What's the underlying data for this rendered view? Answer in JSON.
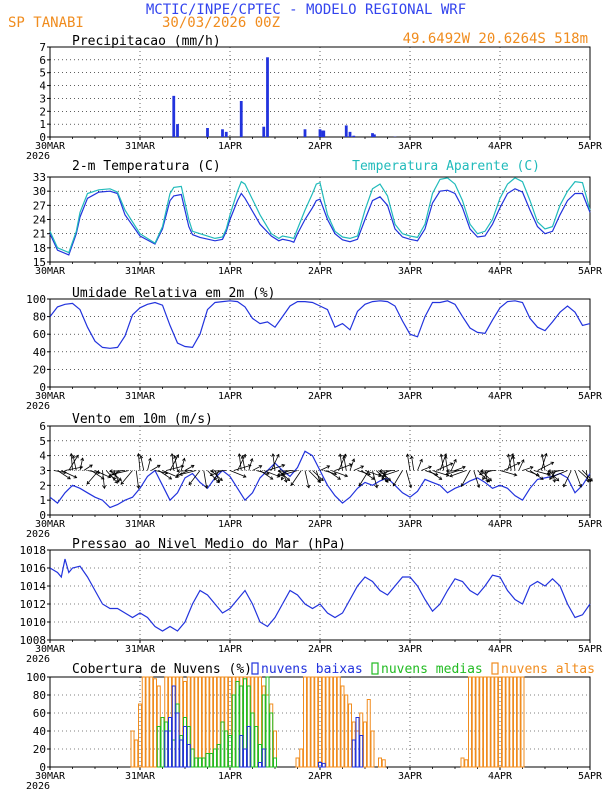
{
  "header": {
    "title": "MCTIC/INPE/CPTEC - MODELO REGIONAL WRF",
    "station": "SP TANABI",
    "run": "30/03/2026 00Z",
    "coords": "49.6492W 20.6264S 518m"
  },
  "colors": {
    "blue": "#2233dd",
    "orange": "#f08c1e",
    "cyan": "#22bbbb",
    "green": "#22bb22",
    "title_blue": "#3344ee",
    "black": "#000000"
  },
  "x_axis": {
    "tick_labels": [
      "30MAR",
      "31MAR",
      "1APR",
      "2APR",
      "3APR",
      "4APR",
      "5APR"
    ],
    "year": "2026",
    "range_hours": [
      0,
      144
    ]
  },
  "chart_data": [
    {
      "type": "bar",
      "title": "Precipitacao (mm/h)",
      "ylim": [
        0,
        7
      ],
      "yticks": [
        "0",
        "1",
        "2",
        "3",
        "4",
        "5",
        "6",
        "7"
      ],
      "x_hours": [
        33,
        34,
        42,
        46,
        47,
        51,
        57,
        58,
        68,
        72,
        72.7,
        73,
        79,
        80,
        81,
        86,
        86.5,
        92
      ],
      "values": [
        3.2,
        1.0,
        0.7,
        0.6,
        0.4,
        2.8,
        0.8,
        6.2,
        0.6,
        0.6,
        0.5,
        0.5,
        0.9,
        0.4,
        0.1,
        0.3,
        0.2,
        0.02
      ]
    },
    {
      "type": "line",
      "title": "2-m Temperatura (C)",
      "legend": "Temperatura Aparente (C)",
      "ylim": [
        15,
        33
      ],
      "yticks": [
        "15",
        "18",
        "21",
        "24",
        "27",
        "30",
        "33"
      ],
      "series": [
        {
          "name": "Temperatura",
          "x": [
            0,
            2,
            5,
            7,
            8,
            10,
            13,
            16,
            18,
            20,
            24,
            28,
            30,
            32,
            33,
            35,
            37,
            38,
            40,
            44,
            46,
            47,
            48,
            50,
            51,
            52,
            56,
            59,
            61,
            62,
            64,
            65,
            66,
            68,
            70,
            71,
            72,
            74,
            76,
            78,
            80,
            82,
            84,
            86,
            88,
            90,
            92,
            94,
            96,
            98,
            100,
            102,
            104,
            106,
            108,
            110,
            112,
            114,
            116,
            118,
            120,
            122,
            124,
            126,
            128,
            130,
            132,
            134,
            136,
            138,
            140,
            142,
            144
          ],
          "values": [
            21,
            17.5,
            16.5,
            21,
            24.5,
            28.5,
            29.8,
            30,
            29.5,
            25,
            20.5,
            18.8,
            22,
            28,
            29,
            29.3,
            22.5,
            20.8,
            20.2,
            19.5,
            19.8,
            21.5,
            24,
            28,
            29.5,
            28.5,
            23,
            20.5,
            19.5,
            19.8,
            19.5,
            19.2,
            21,
            24,
            26.5,
            28,
            28.3,
            24,
            21,
            19.7,
            19.3,
            19.8,
            24,
            28,
            28.8,
            27,
            22,
            20.3,
            19.8,
            19.5,
            22,
            27.5,
            30,
            30.2,
            29.5,
            26.5,
            22,
            20.3,
            20.5,
            23,
            26.5,
            29.5,
            30.5,
            29.8,
            26,
            22.5,
            21,
            21.5,
            25,
            28,
            29.5,
            29.5,
            25.5
          ]
        },
        {
          "name": "Temperatura Aparente",
          "x": [
            0,
            2,
            5,
            7,
            8,
            10,
            13,
            16,
            18,
            20,
            24,
            28,
            30,
            32,
            33,
            35,
            37,
            38,
            40,
            44,
            46,
            47,
            48,
            50,
            51,
            52,
            56,
            59,
            61,
            62,
            64,
            65,
            66,
            68,
            70,
            71,
            72,
            74,
            76,
            78,
            80,
            82,
            84,
            86,
            88,
            90,
            92,
            94,
            96,
            98,
            100,
            102,
            104,
            106,
            108,
            110,
            112,
            114,
            116,
            118,
            120,
            122,
            124,
            126,
            128,
            130,
            132,
            134,
            136,
            138,
            140,
            142,
            144
          ],
          "values": [
            21.5,
            18,
            17,
            21.5,
            25.5,
            29.5,
            30.3,
            30.5,
            29.8,
            26,
            21,
            19,
            22.5,
            29.5,
            30.8,
            31,
            24,
            21.5,
            21,
            20,
            20.3,
            22,
            25,
            30,
            32,
            31.5,
            25,
            21,
            20,
            20.5,
            20.2,
            20,
            22,
            26,
            29.5,
            31.5,
            31.8,
            25,
            21.5,
            20.3,
            20,
            20.5,
            26,
            30.5,
            31.5,
            29,
            23,
            21,
            20.5,
            20.2,
            23,
            29.5,
            32.5,
            32.8,
            31.5,
            28,
            23,
            21,
            21.5,
            24,
            28.5,
            31.5,
            32.8,
            32,
            28,
            23.5,
            22,
            22.5,
            27,
            30,
            32,
            31.8,
            26
          ]
        }
      ]
    },
    {
      "type": "line",
      "title": "Umidade Relativa em 2m (%)",
      "ylim": [
        0,
        100
      ],
      "yticks": [
        "0",
        "20",
        "40",
        "60",
        "80",
        "100"
      ],
      "x": [
        0,
        2,
        4,
        6,
        8,
        10,
        12,
        14,
        16,
        18,
        20,
        22,
        24,
        26,
        28,
        30,
        32,
        34,
        36,
        38,
        40,
        42,
        44,
        46,
        48,
        50,
        52,
        54,
        56,
        58,
        60,
        62,
        64,
        66,
        68,
        70,
        72,
        74,
        76,
        78,
        80,
        82,
        84,
        86,
        88,
        90,
        92,
        94,
        96,
        98,
        100,
        102,
        104,
        106,
        108,
        110,
        112,
        114,
        116,
        118,
        120,
        122,
        124,
        126,
        128,
        130,
        132,
        134,
        136,
        138,
        140,
        142,
        144
      ],
      "values": [
        80,
        91,
        94,
        95,
        88,
        68,
        52,
        45,
        44,
        45,
        58,
        82,
        90,
        94,
        96,
        93,
        70,
        50,
        46,
        45,
        60,
        88,
        96,
        97,
        98,
        97,
        91,
        78,
        72,
        74,
        68,
        80,
        92,
        97,
        97,
        96,
        92,
        88,
        68,
        72,
        65,
        86,
        94,
        97,
        98,
        97,
        92,
        75,
        60,
        57,
        80,
        96,
        96,
        98,
        94,
        80,
        67,
        62,
        61,
        76,
        90,
        97,
        98,
        96,
        78,
        68,
        64,
        74,
        85,
        92,
        85,
        70,
        72
      ]
    },
    {
      "type": "line",
      "title": "Vento em 10m (m/s)",
      "ylim": [
        0,
        6
      ],
      "yticks": [
        "0",
        "1",
        "2",
        "3",
        "4",
        "5",
        "6"
      ],
      "x": [
        0,
        2,
        4,
        6,
        8,
        10,
        12,
        14,
        16,
        18,
        20,
        22,
        24,
        26,
        28,
        30,
        32,
        34,
        36,
        38,
        40,
        42,
        44,
        46,
        48,
        50,
        52,
        54,
        56,
        58,
        60,
        62,
        64,
        66,
        68,
        70,
        72,
        74,
        76,
        78,
        80,
        82,
        84,
        86,
        88,
        90,
        92,
        94,
        96,
        98,
        100,
        102,
        104,
        106,
        108,
        110,
        112,
        114,
        116,
        118,
        120,
        122,
        124,
        126,
        128,
        130,
        132,
        134,
        136,
        138,
        140,
        142,
        144
      ],
      "values": [
        1.2,
        0.8,
        1.5,
        2.0,
        1.8,
        1.5,
        1.2,
        1.0,
        0.5,
        0.7,
        1.0,
        1.2,
        1.8,
        2.6,
        3.0,
        2.0,
        1.0,
        1.5,
        2.5,
        2.8,
        2.2,
        1.8,
        2.5,
        3.0,
        2.6,
        1.8,
        1.0,
        1.5,
        2.5,
        3.0,
        3.5,
        3.0,
        2.6,
        3.2,
        4.3,
        4.0,
        3.0,
        2.0,
        1.3,
        0.8,
        1.2,
        1.8,
        2.2,
        2.0,
        2.3,
        2.5,
        2.0,
        1.5,
        1.2,
        1.6,
        2.4,
        2.2,
        2.0,
        1.5,
        1.8,
        2.0,
        2.3,
        2.5,
        2.2,
        1.8,
        2.0,
        1.8,
        1.3,
        1.0,
        1.8,
        2.4,
        2.5,
        2.6,
        2.8,
        2.5,
        1.5,
        2.0,
        2.8
      ]
    },
    {
      "type": "line",
      "title": "Pressao ao Nivel Medio do Mar (hPa)",
      "ylim": [
        1008,
        1018
      ],
      "yticks": [
        "1008",
        "1010",
        "1012",
        "1014",
        "1016",
        "1018"
      ],
      "x": [
        0,
        2,
        3,
        4,
        5,
        6,
        8,
        10,
        12,
        14,
        16,
        18,
        20,
        22,
        24,
        26,
        28,
        30,
        32,
        34,
        36,
        38,
        40,
        42,
        44,
        46,
        48,
        50,
        52,
        54,
        56,
        58,
        60,
        62,
        64,
        66,
        68,
        70,
        72,
        74,
        76,
        78,
        80,
        82,
        84,
        86,
        88,
        90,
        92,
        94,
        96,
        98,
        100,
        102,
        104,
        106,
        108,
        110,
        112,
        114,
        116,
        118,
        120,
        122,
        124,
        126,
        128,
        130,
        132,
        134,
        136,
        138,
        140,
        142,
        144
      ],
      "values": [
        1016,
        1015.5,
        1015,
        1017,
        1015.5,
        1016,
        1016.2,
        1015,
        1013.5,
        1012,
        1011.5,
        1011.5,
        1011,
        1010.5,
        1011,
        1010.5,
        1009.5,
        1009,
        1009.5,
        1009,
        1010,
        1012,
        1013.5,
        1013,
        1012,
        1011,
        1011.5,
        1012.5,
        1013.5,
        1012,
        1010,
        1009.5,
        1010.5,
        1012,
        1013.5,
        1013,
        1012,
        1011.5,
        1012,
        1011,
        1010.5,
        1011,
        1012.5,
        1014,
        1015,
        1014.5,
        1013.5,
        1013,
        1014,
        1015,
        1015,
        1014,
        1012.5,
        1011.2,
        1012,
        1013.5,
        1014.8,
        1014.5,
        1013.5,
        1013,
        1014,
        1015.2,
        1015,
        1013.5,
        1012.5,
        1012,
        1014,
        1014.5,
        1014,
        1014.8,
        1014,
        1012,
        1010.5,
        1010.8,
        1012
      ]
    },
    {
      "type": "bar",
      "title": "Cobertura de Nuvens (%)",
      "legend": [
        "nuvens baixas",
        "nuvens medias",
        "nuvens altas"
      ],
      "ylim": [
        0,
        100
      ],
      "yticks": [
        "0",
        "20",
        "40",
        "60",
        "80",
        "100"
      ],
      "series": [
        {
          "name": "nuvens altas",
          "color": "#f08c1e",
          "x": [
            22,
            23,
            24,
            25,
            26,
            27,
            28,
            29,
            30,
            31,
            32,
            33,
            34,
            35,
            36,
            37,
            38,
            39,
            40,
            41,
            42,
            43,
            44,
            45,
            46,
            47,
            48,
            49,
            50,
            51,
            52,
            53,
            54,
            55,
            56,
            57,
            58,
            59,
            60,
            66,
            67,
            68,
            69,
            70,
            71,
            72,
            73,
            74,
            75,
            76,
            77,
            78,
            79,
            80,
            81,
            82,
            83,
            84,
            85,
            86,
            88,
            89,
            110,
            111,
            112,
            113,
            114,
            115,
            116,
            117,
            118,
            119,
            120,
            121,
            122,
            123,
            124,
            125,
            126
          ],
          "values": [
            40,
            30,
            70,
            100,
            100,
            100,
            98,
            90,
            55,
            100,
            100,
            100,
            100,
            100,
            95,
            100,
            100,
            100,
            100,
            100,
            100,
            100,
            100,
            100,
            100,
            100,
            100,
            100,
            100,
            100,
            100,
            100,
            100,
            100,
            100,
            90,
            80,
            70,
            40,
            10,
            20,
            100,
            100,
            100,
            100,
            100,
            100,
            100,
            100,
            100,
            100,
            90,
            80,
            70,
            50,
            40,
            60,
            50,
            75,
            40,
            10,
            8,
            10,
            8,
            100,
            100,
            100,
            100,
            100,
            100,
            100,
            100,
            100,
            100,
            100,
            100,
            100,
            100,
            100
          ]
        },
        {
          "name": "nuvens medias",
          "color": "#22bb22",
          "x": [
            29,
            30,
            31,
            32,
            33,
            34,
            35,
            36,
            37,
            38,
            39,
            40,
            41,
            42,
            43,
            44,
            45,
            46,
            47,
            48,
            49,
            50,
            51,
            52,
            53,
            54,
            55,
            56,
            57,
            58,
            59,
            60
          ],
          "values": [
            45,
            55,
            50,
            40,
            30,
            70,
            35,
            55,
            45,
            20,
            10,
            10,
            10,
            15,
            15,
            20,
            25,
            50,
            40,
            35,
            80,
            95,
            90,
            98,
            90,
            60,
            45,
            25,
            80,
            100,
            60,
            10
          ]
        },
        {
          "name": "nuvens baixas",
          "color": "#2233dd",
          "x": [
            31,
            32,
            33,
            34,
            35,
            36,
            37,
            51,
            52,
            53,
            56,
            57,
            72,
            73,
            81,
            82,
            83
          ],
          "values": [
            40,
            55,
            90,
            60,
            30,
            45,
            25,
            35,
            20,
            45,
            5,
            20,
            5,
            4,
            30,
            55,
            35
          ]
        }
      ]
    }
  ]
}
